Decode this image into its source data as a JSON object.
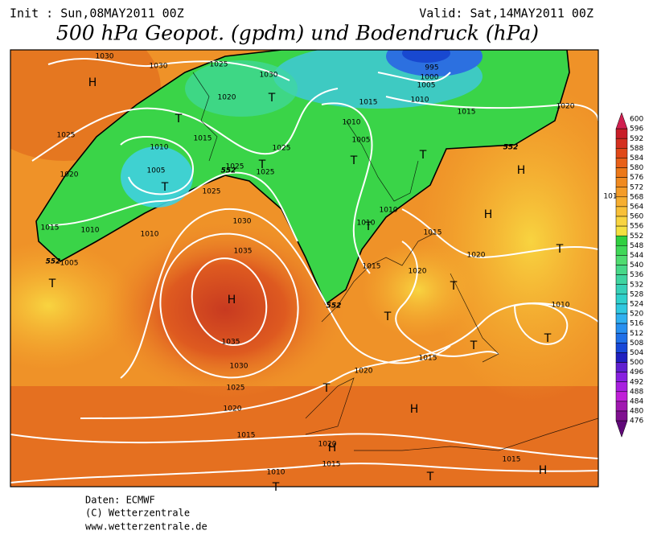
{
  "header": {
    "init": "Init : Sun,08MAY2011 00Z",
    "valid": "Valid: Sat,14MAY2011 00Z",
    "title": "500 hPa Geopot. (gpdm) und Bodendruck (hPa)"
  },
  "isobar_labels": [
    1030,
    1030,
    1025,
    1030,
    1020,
    1015,
    1010,
    1015,
    1020,
    995,
    1000,
    1005,
    1025,
    1010,
    1015,
    1025,
    1010,
    1005,
    1005,
    1020,
    1025,
    1025,
    1025,
    1030,
    1010,
    1010,
    1015,
    1015,
    1010,
    1010,
    1035,
    1005,
    1015,
    1020,
    1020,
    1010,
    1035,
    1030,
    1020,
    1015,
    1025,
    1020,
    1015,
    1020,
    1015,
    1010,
    1015,
    101
  ],
  "contour_labels": [
    552,
    552,
    552,
    552
  ],
  "pressure_centers": [
    "H",
    "T",
    "T",
    "T",
    "T",
    "T",
    "T",
    "H",
    "H",
    "T",
    "T",
    "T",
    "H",
    "T",
    "T",
    "T",
    "T",
    "T",
    "H",
    "H",
    "T",
    "H",
    "T"
  ],
  "colorbar": {
    "labels": [
      600,
      596,
      592,
      588,
      584,
      580,
      576,
      572,
      568,
      564,
      560,
      556,
      552,
      548,
      544,
      540,
      536,
      532,
      528,
      524,
      520,
      516,
      512,
      508,
      504,
      500,
      496,
      492,
      488,
      484,
      480,
      476
    ],
    "colors": [
      "#d02050",
      "#c81e28",
      "#d43020",
      "#e04818",
      "#e86018",
      "#ec7818",
      "#f08a20",
      "#f49c28",
      "#f6ae30",
      "#f8c038",
      "#f8d440",
      "#f4e040",
      "#30d040",
      "#40d858",
      "#50dc70",
      "#48d888",
      "#40d4a0",
      "#38d0b8",
      "#30d0cc",
      "#30c8e0",
      "#30b0f0",
      "#2890f0",
      "#2070e8",
      "#1848d8",
      "#2020c0",
      "#6020d0",
      "#8820e0",
      "#a820e0",
      "#c020d8",
      "#a018b0",
      "#801090",
      "#600878"
    ]
  },
  "footer": [
    "Daten: ECMWF",
    "(C) Wetterzentrale",
    "www.wetterzentrale.de"
  ]
}
